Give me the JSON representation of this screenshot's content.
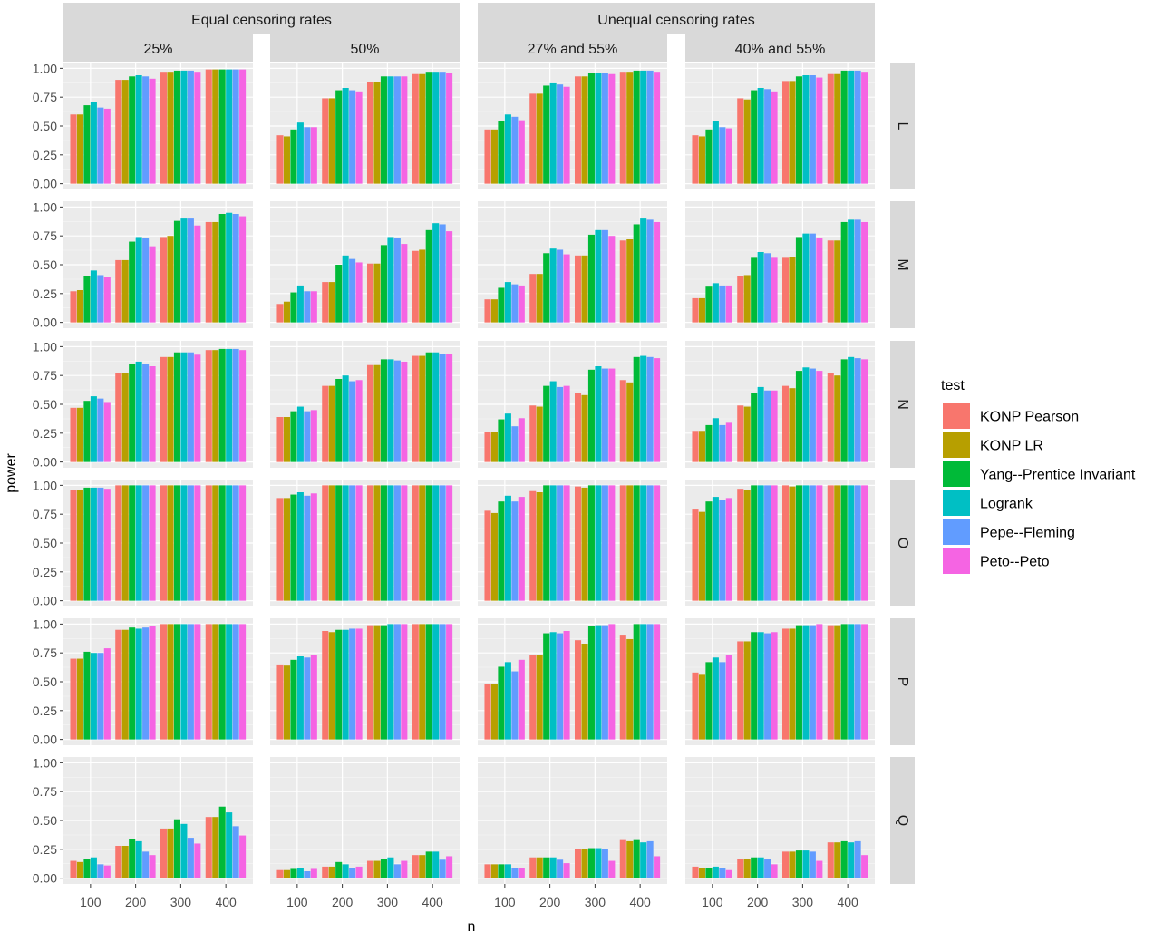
{
  "chart_data": {
    "type": "bar",
    "xlabel": "n",
    "ylabel": "power",
    "ylim": [
      0,
      1
    ],
    "yticks": [
      "0.00",
      "0.25",
      "0.50",
      "0.75",
      "1.00"
    ],
    "categories": [
      "100",
      "200",
      "300",
      "400"
    ],
    "groups": [
      {
        "label": "Equal censoring rates",
        "columns": [
          "25%",
          "50%"
        ]
      },
      {
        "label": "Unequal censoring rates",
        "columns": [
          "27% and 55%",
          "40% and 55%"
        ]
      }
    ],
    "rows": [
      "L",
      "M",
      "N",
      "O",
      "P",
      "Q"
    ],
    "legend": {
      "title": "test",
      "position": "right",
      "entries": [
        {
          "name": "KONP Pearson",
          "color": "#F8766D"
        },
        {
          "name": "KONP LR",
          "color": "#B79F00"
        },
        {
          "name": "Yang--Prentice Invariant",
          "color": "#00BA38"
        },
        {
          "name": "Logrank",
          "color": "#00BFC4"
        },
        {
          "name": "Pepe--Fleming",
          "color": "#619CFF"
        },
        {
          "name": "Peto--Peto",
          "color": "#F564E3"
        }
      ]
    },
    "values": {
      "L": [
        [
          [
            0.6,
            0.6,
            0.68,
            0.71,
            0.66,
            0.65
          ],
          [
            0.9,
            0.9,
            0.93,
            0.94,
            0.93,
            0.91
          ],
          [
            0.97,
            0.97,
            0.98,
            0.98,
            0.98,
            0.97
          ],
          [
            0.99,
            0.99,
            0.99,
            0.99,
            0.99,
            0.99
          ]
        ],
        [
          [
            0.42,
            0.41,
            0.47,
            0.53,
            0.49,
            0.49
          ],
          [
            0.74,
            0.74,
            0.81,
            0.83,
            0.81,
            0.8
          ],
          [
            0.88,
            0.88,
            0.93,
            0.93,
            0.93,
            0.93
          ],
          [
            0.95,
            0.95,
            0.97,
            0.97,
            0.97,
            0.96
          ]
        ],
        [
          [
            0.47,
            0.47,
            0.54,
            0.6,
            0.58,
            0.55
          ],
          [
            0.78,
            0.78,
            0.85,
            0.87,
            0.86,
            0.84
          ],
          [
            0.93,
            0.93,
            0.96,
            0.96,
            0.96,
            0.95
          ],
          [
            0.97,
            0.97,
            0.98,
            0.98,
            0.98,
            0.97
          ]
        ],
        [
          [
            0.42,
            0.41,
            0.47,
            0.54,
            0.49,
            0.48
          ],
          [
            0.74,
            0.73,
            0.81,
            0.83,
            0.82,
            0.8
          ],
          [
            0.89,
            0.89,
            0.93,
            0.94,
            0.94,
            0.92
          ],
          [
            0.95,
            0.95,
            0.98,
            0.98,
            0.98,
            0.97
          ]
        ]
      ],
      "M": [
        [
          [
            0.27,
            0.28,
            0.4,
            0.45,
            0.41,
            0.39
          ],
          [
            0.54,
            0.54,
            0.7,
            0.74,
            0.73,
            0.66
          ],
          [
            0.74,
            0.75,
            0.88,
            0.9,
            0.9,
            0.84
          ],
          [
            0.87,
            0.87,
            0.94,
            0.95,
            0.94,
            0.92
          ]
        ],
        [
          [
            0.16,
            0.18,
            0.26,
            0.32,
            0.27,
            0.27
          ],
          [
            0.35,
            0.35,
            0.5,
            0.58,
            0.55,
            0.52
          ],
          [
            0.51,
            0.51,
            0.67,
            0.74,
            0.73,
            0.68
          ],
          [
            0.62,
            0.63,
            0.8,
            0.86,
            0.85,
            0.79
          ]
        ],
        [
          [
            0.2,
            0.2,
            0.3,
            0.35,
            0.33,
            0.32
          ],
          [
            0.42,
            0.42,
            0.6,
            0.64,
            0.63,
            0.59
          ],
          [
            0.58,
            0.58,
            0.76,
            0.8,
            0.8,
            0.75
          ],
          [
            0.71,
            0.72,
            0.85,
            0.9,
            0.89,
            0.87
          ]
        ],
        [
          [
            0.21,
            0.21,
            0.31,
            0.34,
            0.32,
            0.32
          ],
          [
            0.4,
            0.41,
            0.56,
            0.61,
            0.6,
            0.56
          ],
          [
            0.56,
            0.57,
            0.74,
            0.77,
            0.77,
            0.73
          ],
          [
            0.71,
            0.71,
            0.87,
            0.89,
            0.89,
            0.87
          ]
        ]
      ],
      "N": [
        [
          [
            0.47,
            0.47,
            0.53,
            0.57,
            0.55,
            0.52
          ],
          [
            0.77,
            0.77,
            0.85,
            0.87,
            0.85,
            0.83
          ],
          [
            0.91,
            0.91,
            0.95,
            0.95,
            0.95,
            0.93
          ],
          [
            0.97,
            0.97,
            0.98,
            0.98,
            0.98,
            0.97
          ]
        ],
        [
          [
            0.39,
            0.39,
            0.44,
            0.48,
            0.44,
            0.45
          ],
          [
            0.66,
            0.66,
            0.72,
            0.75,
            0.7,
            0.71
          ],
          [
            0.84,
            0.84,
            0.89,
            0.89,
            0.88,
            0.87
          ],
          [
            0.92,
            0.92,
            0.95,
            0.95,
            0.94,
            0.94
          ]
        ],
        [
          [
            0.26,
            0.26,
            0.37,
            0.42,
            0.31,
            0.38
          ],
          [
            0.49,
            0.48,
            0.66,
            0.7,
            0.65,
            0.66
          ],
          [
            0.6,
            0.58,
            0.8,
            0.83,
            0.81,
            0.81
          ],
          [
            0.71,
            0.69,
            0.91,
            0.92,
            0.91,
            0.9
          ]
        ],
        [
          [
            0.27,
            0.27,
            0.32,
            0.38,
            0.32,
            0.34
          ],
          [
            0.49,
            0.48,
            0.6,
            0.65,
            0.62,
            0.62
          ],
          [
            0.66,
            0.64,
            0.79,
            0.82,
            0.81,
            0.79
          ],
          [
            0.77,
            0.75,
            0.89,
            0.91,
            0.9,
            0.89
          ]
        ]
      ],
      "O": [
        [
          [
            0.96,
            0.96,
            0.98,
            0.98,
            0.98,
            0.97
          ],
          [
            1.0,
            1.0,
            1.0,
            1.0,
            1.0,
            1.0
          ],
          [
            1.0,
            1.0,
            1.0,
            1.0,
            1.0,
            1.0
          ],
          [
            1.0,
            1.0,
            1.0,
            1.0,
            1.0,
            1.0
          ]
        ],
        [
          [
            0.89,
            0.89,
            0.92,
            0.94,
            0.91,
            0.93
          ],
          [
            1.0,
            1.0,
            1.0,
            1.0,
            1.0,
            1.0
          ],
          [
            1.0,
            1.0,
            1.0,
            1.0,
            1.0,
            1.0
          ],
          [
            1.0,
            1.0,
            1.0,
            1.0,
            1.0,
            1.0
          ]
        ],
        [
          [
            0.78,
            0.76,
            0.86,
            0.91,
            0.86,
            0.9
          ],
          [
            0.95,
            0.94,
            1.0,
            1.0,
            1.0,
            1.0
          ],
          [
            0.99,
            0.98,
            1.0,
            1.0,
            1.0,
            1.0
          ],
          [
            1.0,
            1.0,
            1.0,
            1.0,
            1.0,
            1.0
          ]
        ],
        [
          [
            0.79,
            0.77,
            0.86,
            0.9,
            0.87,
            0.89
          ],
          [
            0.97,
            0.96,
            1.0,
            1.0,
            1.0,
            1.0
          ],
          [
            1.0,
            0.99,
            1.0,
            1.0,
            1.0,
            1.0
          ],
          [
            1.0,
            1.0,
            1.0,
            1.0,
            1.0,
            1.0
          ]
        ]
      ],
      "P": [
        [
          [
            0.7,
            0.7,
            0.76,
            0.75,
            0.75,
            0.79
          ],
          [
            0.95,
            0.95,
            0.97,
            0.96,
            0.97,
            0.98
          ],
          [
            1.0,
            1.0,
            1.0,
            1.0,
            1.0,
            1.0
          ],
          [
            1.0,
            1.0,
            1.0,
            1.0,
            1.0,
            1.0
          ]
        ],
        [
          [
            0.65,
            0.64,
            0.69,
            0.72,
            0.71,
            0.73
          ],
          [
            0.94,
            0.93,
            0.95,
            0.95,
            0.96,
            0.96
          ],
          [
            0.99,
            0.99,
            0.99,
            1.0,
            1.0,
            1.0
          ],
          [
            1.0,
            1.0,
            1.0,
            1.0,
            1.0,
            1.0
          ]
        ],
        [
          [
            0.48,
            0.48,
            0.63,
            0.67,
            0.59,
            0.69
          ],
          [
            0.73,
            0.73,
            0.92,
            0.93,
            0.92,
            0.94
          ],
          [
            0.86,
            0.83,
            0.98,
            0.99,
            0.99,
            1.0
          ],
          [
            0.9,
            0.87,
            1.0,
            1.0,
            1.0,
            1.0
          ]
        ],
        [
          [
            0.58,
            0.56,
            0.67,
            0.71,
            0.67,
            0.73
          ],
          [
            0.85,
            0.85,
            0.93,
            0.93,
            0.92,
            0.93
          ],
          [
            0.96,
            0.96,
            0.99,
            0.99,
            0.99,
            1.0
          ],
          [
            0.99,
            0.99,
            1.0,
            1.0,
            1.0,
            1.0
          ]
        ]
      ],
      "Q": [
        [
          [
            0.15,
            0.14,
            0.17,
            0.18,
            0.12,
            0.11
          ],
          [
            0.28,
            0.28,
            0.34,
            0.32,
            0.23,
            0.2
          ],
          [
            0.43,
            0.43,
            0.51,
            0.47,
            0.35,
            0.3
          ],
          [
            0.53,
            0.53,
            0.62,
            0.57,
            0.45,
            0.37
          ]
        ],
        [
          [
            0.07,
            0.07,
            0.08,
            0.09,
            0.06,
            0.08
          ],
          [
            0.1,
            0.1,
            0.14,
            0.12,
            0.09,
            0.1
          ],
          [
            0.15,
            0.15,
            0.17,
            0.18,
            0.12,
            0.15
          ],
          [
            0.2,
            0.2,
            0.23,
            0.23,
            0.16,
            0.19
          ]
        ],
        [
          [
            0.12,
            0.12,
            0.12,
            0.12,
            0.09,
            0.09
          ],
          [
            0.18,
            0.18,
            0.18,
            0.18,
            0.16,
            0.13
          ],
          [
            0.25,
            0.25,
            0.26,
            0.26,
            0.25,
            0.15
          ],
          [
            0.33,
            0.32,
            0.33,
            0.31,
            0.32,
            0.19
          ]
        ],
        [
          [
            0.1,
            0.09,
            0.09,
            0.1,
            0.09,
            0.07
          ],
          [
            0.17,
            0.17,
            0.18,
            0.18,
            0.17,
            0.12
          ],
          [
            0.23,
            0.23,
            0.24,
            0.24,
            0.23,
            0.15
          ],
          [
            0.31,
            0.31,
            0.32,
            0.31,
            0.32,
            0.2
          ]
        ]
      ]
    }
  }
}
